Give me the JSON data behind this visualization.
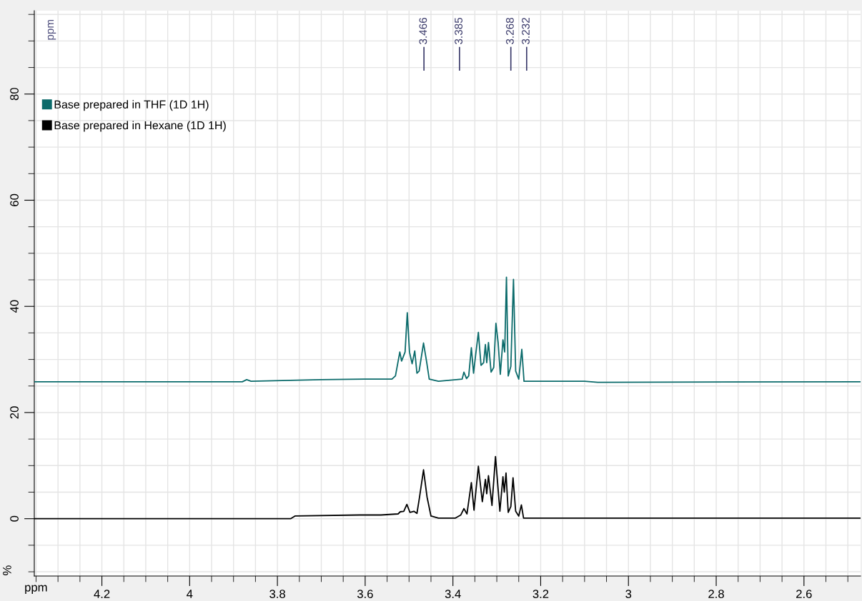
{
  "chart_data": {
    "type": "line",
    "xlabel": "ppm",
    "ylabel": "%",
    "xlim": [
      4.354,
      2.471
    ],
    "ylim": [
      -10.8,
      95.7
    ],
    "xticks": [
      4.2,
      4,
      3.8,
      3.6,
      3.4,
      3.2,
      3,
      2.8,
      2.6
    ],
    "yticks": [
      0,
      20,
      40,
      60,
      80
    ],
    "grid": true,
    "legend": "top left",
    "marker": "none",
    "line_style": "solid",
    "annotations": [
      "ppm"
    ],
    "ref_lines": [
      {
        "axis": "x",
        "value": 3.466,
        "label": "3.466",
        "color": "#3a3a6a"
      },
      {
        "axis": "x",
        "value": 3.385,
        "label": "3.385",
        "color": "#3a3a6a"
      },
      {
        "axis": "x",
        "value": 3.268,
        "label": "3.268",
        "color": "#3a3a6a"
      },
      {
        "axis": "x",
        "value": 3.232,
        "label": "3.232",
        "color": "#3a3a6a"
      }
    ],
    "series": [
      {
        "name": "Base prepared in THF (1D 1H)",
        "color": "#0b6b6b",
        "x": [
          4.354,
          3.88,
          3.87,
          3.86,
          3.7,
          3.6,
          3.539,
          3.531,
          3.521,
          3.517,
          3.509,
          3.504,
          3.499,
          3.493,
          3.487,
          3.482,
          3.477,
          3.467,
          3.46,
          3.454,
          3.433,
          3.379,
          3.375,
          3.369,
          3.364,
          3.358,
          3.353,
          3.348,
          3.342,
          3.336,
          3.33,
          3.326,
          3.323,
          3.319,
          3.313,
          3.307,
          3.302,
          3.297,
          3.292,
          3.286,
          3.282,
          3.278,
          3.274,
          3.268,
          3.262,
          3.257,
          3.25,
          3.243,
          3.238,
          3.1,
          3.07,
          3.06,
          2.471
        ],
        "values": [
          25.8,
          25.8,
          26.2,
          25.9,
          26.2,
          26.3,
          26.3,
          26.9,
          31.4,
          29.7,
          31.4,
          38.8,
          31.4,
          29.2,
          31.6,
          27.4,
          27.8,
          33.1,
          29.6,
          26.3,
          25.9,
          26.3,
          27.6,
          26.4,
          26.9,
          32.2,
          27.4,
          31.0,
          35.1,
          28.9,
          29.4,
          32.8,
          29.4,
          33.2,
          27.6,
          28.5,
          36.8,
          33.2,
          27.2,
          33.7,
          31.4,
          45.5,
          26.9,
          28.7,
          45.1,
          27.8,
          26.3,
          31.9,
          25.9,
          25.9,
          25.7,
          25.7,
          25.8
        ]
      },
      {
        "name": "Base prepared in Hexane (1D 1H)",
        "color": "#000000",
        "x": [
          4.354,
          3.77,
          3.76,
          3.613,
          3.564,
          3.525,
          3.52,
          3.512,
          3.505,
          3.498,
          3.489,
          3.482,
          3.476,
          3.467,
          3.459,
          3.45,
          3.433,
          3.395,
          3.382,
          3.375,
          3.368,
          3.358,
          3.352,
          3.342,
          3.333,
          3.326,
          3.323,
          3.319,
          3.311,
          3.303,
          3.293,
          3.286,
          3.283,
          3.279,
          3.274,
          3.268,
          3.263,
          3.257,
          3.25,
          3.244,
          3.239,
          2.471
        ],
        "values": [
          0.0,
          0.0,
          0.5,
          0.7,
          0.7,
          0.9,
          1.3,
          1.4,
          2.7,
          1.2,
          1.4,
          1.0,
          4.1,
          9.2,
          4.1,
          0.5,
          0.1,
          0.1,
          0.7,
          1.9,
          0.9,
          6.8,
          1.6,
          9.9,
          3.2,
          7.4,
          4.7,
          8.1,
          2.5,
          11.7,
          1.4,
          7.9,
          5.0,
          8.6,
          1.2,
          2.3,
          7.7,
          1.4,
          0.5,
          2.6,
          0.1,
          0.1
        ]
      }
    ]
  }
}
